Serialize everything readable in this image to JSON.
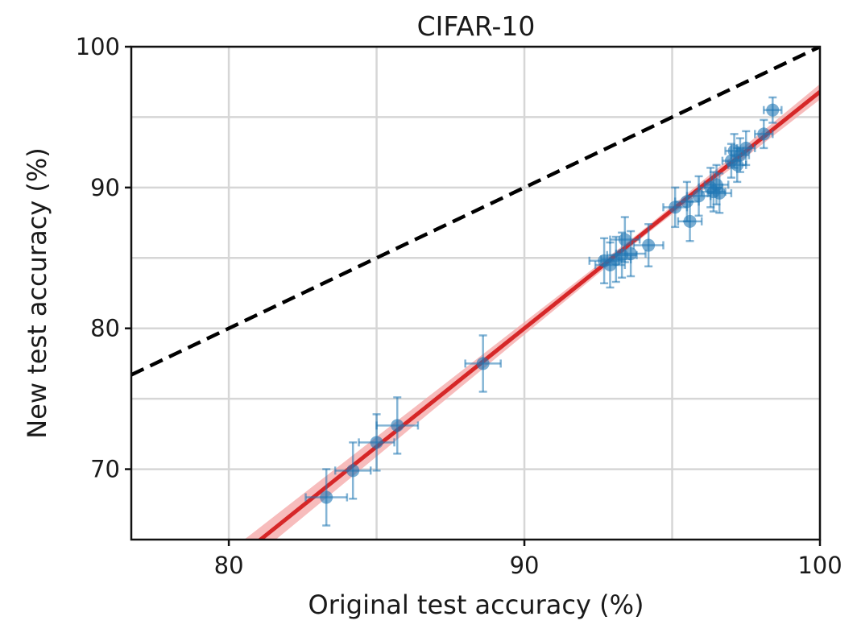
{
  "chart_data": {
    "type": "scatter",
    "title": "CIFAR-10",
    "xlabel": "Original test accuracy (%)",
    "ylabel": "New test accuracy (%)",
    "xlim": [
      76.7,
      100
    ],
    "ylim": [
      65,
      100
    ],
    "xticks": [
      80,
      90,
      100
    ],
    "yticks": [
      70,
      80,
      90,
      100
    ],
    "xgrid": [
      80,
      85,
      90,
      95,
      100
    ],
    "ygrid": [
      70,
      75,
      80,
      85,
      90,
      95,
      100
    ],
    "grid": true,
    "legend": "none",
    "colors": {
      "points": "#1f77b4",
      "fit_line": "#d62728",
      "fit_band": "#f4a6a6",
      "reference_line": "#000000"
    },
    "reference_line": {
      "description": "y = x",
      "style": "dashed",
      "from": [
        76.7,
        76.7
      ],
      "to": [
        100,
        100
      ]
    },
    "fit_line": {
      "slope": 1.68,
      "intercept": -71.2,
      "style": "solid"
    },
    "points": [
      {
        "x": 83.3,
        "y": 68.0,
        "xerr": 0.7,
        "yerr": 2.0
      },
      {
        "x": 84.2,
        "y": 69.9,
        "xerr": 0.6,
        "yerr": 2.0
      },
      {
        "x": 85.0,
        "y": 71.9,
        "xerr": 0.6,
        "yerr": 2.0
      },
      {
        "x": 85.7,
        "y": 73.1,
        "xerr": 0.7,
        "yerr": 2.0
      },
      {
        "x": 88.6,
        "y": 77.5,
        "xerr": 0.6,
        "yerr": 2.0
      },
      {
        "x": 92.7,
        "y": 84.8,
        "xerr": 0.5,
        "yerr": 1.6
      },
      {
        "x": 92.9,
        "y": 84.5,
        "xerr": 0.5,
        "yerr": 1.6
      },
      {
        "x": 93.1,
        "y": 84.9,
        "xerr": 0.5,
        "yerr": 1.6
      },
      {
        "x": 93.3,
        "y": 85.2,
        "xerr": 0.5,
        "yerr": 1.6
      },
      {
        "x": 93.4,
        "y": 86.3,
        "xerr": 0.5,
        "yerr": 1.6
      },
      {
        "x": 93.6,
        "y": 85.3,
        "xerr": 0.5,
        "yerr": 1.6
      },
      {
        "x": 94.2,
        "y": 85.9,
        "xerr": 0.5,
        "yerr": 1.5
      },
      {
        "x": 95.1,
        "y": 88.6,
        "xerr": 0.4,
        "yerr": 1.4
      },
      {
        "x": 95.5,
        "y": 89.0,
        "xerr": 0.4,
        "yerr": 1.4
      },
      {
        "x": 95.6,
        "y": 87.6,
        "xerr": 0.4,
        "yerr": 1.4
      },
      {
        "x": 95.9,
        "y": 89.4,
        "xerr": 0.4,
        "yerr": 1.4
      },
      {
        "x": 96.3,
        "y": 90.0,
        "xerr": 0.4,
        "yerr": 1.4
      },
      {
        "x": 96.4,
        "y": 89.7,
        "xerr": 0.4,
        "yerr": 1.4
      },
      {
        "x": 96.5,
        "y": 90.2,
        "xerr": 0.4,
        "yerr": 1.4
      },
      {
        "x": 96.6,
        "y": 89.6,
        "xerr": 0.4,
        "yerr": 1.4
      },
      {
        "x": 97.0,
        "y": 91.9,
        "xerr": 0.3,
        "yerr": 1.2
      },
      {
        "x": 97.1,
        "y": 92.6,
        "xerr": 0.3,
        "yerr": 1.2
      },
      {
        "x": 97.2,
        "y": 91.6,
        "xerr": 0.3,
        "yerr": 1.2
      },
      {
        "x": 97.3,
        "y": 92.3,
        "xerr": 0.3,
        "yerr": 1.2
      },
      {
        "x": 97.5,
        "y": 92.8,
        "xerr": 0.3,
        "yerr": 1.2
      },
      {
        "x": 98.1,
        "y": 93.8,
        "xerr": 0.3,
        "yerr": 1.0
      },
      {
        "x": 98.4,
        "y": 95.5,
        "xerr": 0.3,
        "yerr": 0.9
      }
    ]
  }
}
